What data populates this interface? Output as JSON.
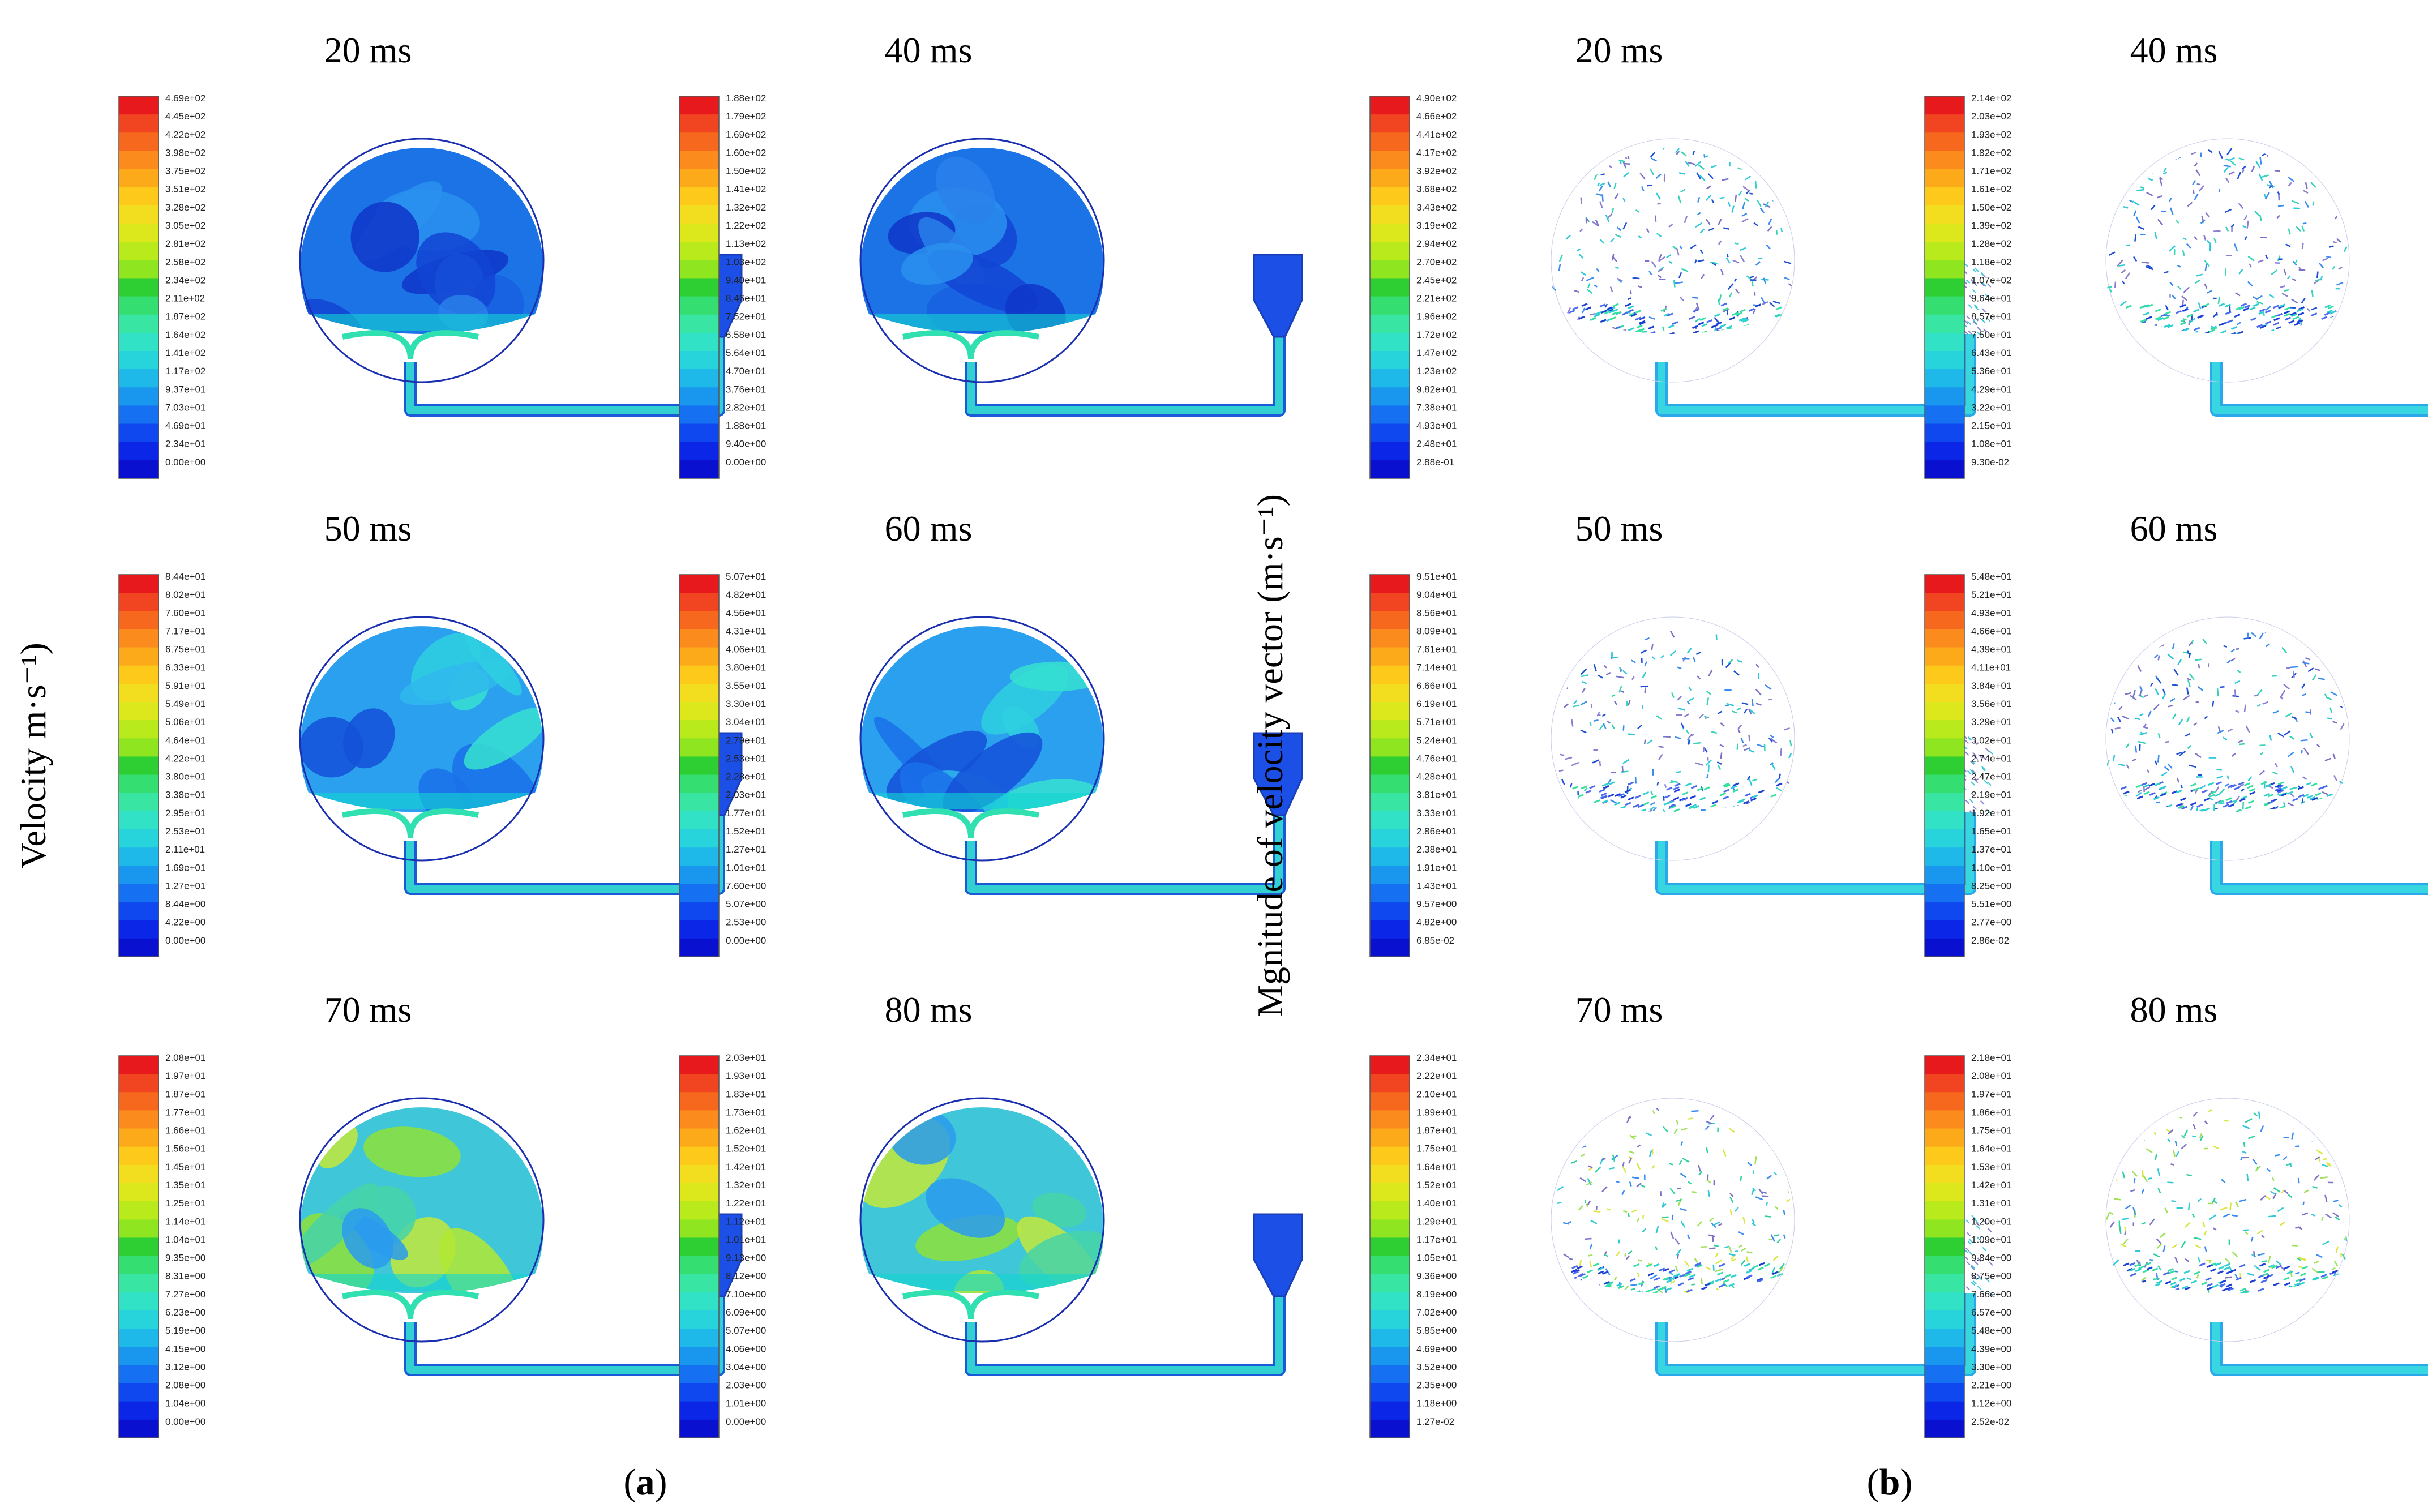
{
  "panel_a": {
    "axis_label": "Velocity m·s⁻¹)",
    "caption_letter": "a",
    "frames": [
      {
        "time": "20 ms",
        "field": "contour",
        "ticks": [
          "4.69e+02",
          "4.45e+02",
          "4.22e+02",
          "3.98e+02",
          "3.75e+02",
          "3.51e+02",
          "3.28e+02",
          "3.05e+02",
          "2.81e+02",
          "2.58e+02",
          "2.34e+02",
          "2.11e+02",
          "1.87e+02",
          "1.64e+02",
          "1.41e+02",
          "1.17e+02",
          "9.37e+01",
          "7.03e+01",
          "4.69e+01",
          "2.34e+01",
          "0.00e+00"
        ]
      },
      {
        "time": "40 ms",
        "field": "contour",
        "ticks": [
          "1.88e+02",
          "1.79e+02",
          "1.69e+02",
          "1.60e+02",
          "1.50e+02",
          "1.41e+02",
          "1.32e+02",
          "1.22e+02",
          "1.13e+02",
          "1.03e+02",
          "9.40e+01",
          "8.46e+01",
          "7.52e+01",
          "6.58e+01",
          "5.64e+01",
          "4.70e+01",
          "3.76e+01",
          "2.82e+01",
          "1.88e+01",
          "9.40e+00",
          "0.00e+00"
        ]
      },
      {
        "time": "50 ms",
        "field": "contour",
        "ticks": [
          "8.44e+01",
          "8.02e+01",
          "7.60e+01",
          "7.17e+01",
          "6.75e+01",
          "6.33e+01",
          "5.91e+01",
          "5.49e+01",
          "5.06e+01",
          "4.64e+01",
          "4.22e+01",
          "3.80e+01",
          "3.38e+01",
          "2.95e+01",
          "2.53e+01",
          "2.11e+01",
          "1.69e+01",
          "1.27e+01",
          "8.44e+00",
          "4.22e+00",
          "0.00e+00"
        ]
      },
      {
        "time": "60 ms",
        "field": "contour",
        "ticks": [
          "5.07e+01",
          "4.82e+01",
          "4.56e+01",
          "4.31e+01",
          "4.06e+01",
          "3.80e+01",
          "3.55e+01",
          "3.30e+01",
          "3.04e+01",
          "2.79e+01",
          "2.53e+01",
          "2.28e+01",
          "2.03e+01",
          "1.77e+01",
          "1.52e+01",
          "1.27e+01",
          "1.01e+01",
          "7.60e+00",
          "5.07e+00",
          "2.53e+00",
          "0.00e+00"
        ]
      },
      {
        "time": "70 ms",
        "field": "contour",
        "ticks": [
          "2.08e+01",
          "1.97e+01",
          "1.87e+01",
          "1.77e+01",
          "1.66e+01",
          "1.56e+01",
          "1.45e+01",
          "1.35e+01",
          "1.25e+01",
          "1.14e+01",
          "1.04e+01",
          "9.35e+00",
          "8.31e+00",
          "7.27e+00",
          "6.23e+00",
          "5.19e+00",
          "4.15e+00",
          "3.12e+00",
          "2.08e+00",
          "1.04e+00",
          "0.00e+00"
        ]
      },
      {
        "time": "80 ms",
        "field": "contour",
        "ticks": [
          "2.03e+01",
          "1.93e+01",
          "1.83e+01",
          "1.73e+01",
          "1.62e+01",
          "1.52e+01",
          "1.42e+01",
          "1.32e+01",
          "1.22e+01",
          "1.12e+01",
          "1.01e+01",
          "9.13e+00",
          "8.12e+00",
          "7.10e+00",
          "6.09e+00",
          "5.07e+00",
          "4.06e+00",
          "3.04e+00",
          "2.03e+00",
          "1.01e+00",
          "0.00e+00"
        ]
      }
    ]
  },
  "panel_b": {
    "axis_label": "Mgnitude of velocity vector (m·s⁻¹)",
    "caption_letter": "b",
    "frames": [
      {
        "time": "20 ms",
        "field": "vector",
        "ticks": [
          "4.90e+02",
          "4.66e+02",
          "4.41e+02",
          "4.17e+02",
          "3.92e+02",
          "3.68e+02",
          "3.43e+02",
          "3.19e+02",
          "2.94e+02",
          "2.70e+02",
          "2.45e+02",
          "2.21e+02",
          "1.96e+02",
          "1.72e+02",
          "1.47e+02",
          "1.23e+02",
          "9.82e+01",
          "7.38e+01",
          "4.93e+01",
          "2.48e+01",
          "2.88e-01"
        ]
      },
      {
        "time": "40 ms",
        "field": "vector",
        "ticks": [
          "2.14e+02",
          "2.03e+02",
          "1.93e+02",
          "1.82e+02",
          "1.71e+02",
          "1.61e+02",
          "1.50e+02",
          "1.39e+02",
          "1.28e+02",
          "1.18e+02",
          "1.07e+02",
          "9.64e+01",
          "8.57e+01",
          "7.50e+01",
          "6.43e+01",
          "5.36e+01",
          "4.29e+01",
          "3.22e+01",
          "2.15e+01",
          "1.08e+01",
          "9.30e-02"
        ]
      },
      {
        "time": "50 ms",
        "field": "vector",
        "ticks": [
          "9.51e+01",
          "9.04e+01",
          "8.56e+01",
          "8.09e+01",
          "7.61e+01",
          "7.14e+01",
          "6.66e+01",
          "6.19e+01",
          "5.71e+01",
          "5.24e+01",
          "4.76e+01",
          "4.28e+01",
          "3.81e+01",
          "3.33e+01",
          "2.86e+01",
          "2.38e+01",
          "1.91e+01",
          "1.43e+01",
          "9.57e+00",
          "4.82e+00",
          "6.85e-02"
        ]
      },
      {
        "time": "60 ms",
        "field": "vector",
        "ticks": [
          "5.48e+01",
          "5.21e+01",
          "4.93e+01",
          "4.66e+01",
          "4.39e+01",
          "4.11e+01",
          "3.84e+01",
          "3.56e+01",
          "3.29e+01",
          "3.02e+01",
          "2.74e+01",
          "2.47e+01",
          "2.19e+01",
          "1.92e+01",
          "1.65e+01",
          "1.37e+01",
          "1.10e+01",
          "8.25e+00",
          "5.51e+00",
          "2.77e+00",
          "2.86e-02"
        ]
      },
      {
        "time": "70 ms",
        "field": "vector",
        "ticks": [
          "2.34e+01",
          "2.22e+01",
          "2.10e+01",
          "1.99e+01",
          "1.87e+01",
          "1.75e+01",
          "1.64e+01",
          "1.52e+01",
          "1.40e+01",
          "1.29e+01",
          "1.17e+01",
          "1.05e+01",
          "9.36e+00",
          "8.19e+00",
          "7.02e+00",
          "5.85e+00",
          "4.69e+00",
          "3.52e+00",
          "2.35e+00",
          "1.18e+00",
          "1.27e-02"
        ]
      },
      {
        "time": "80 ms",
        "field": "vector",
        "ticks": [
          "2.18e+01",
          "2.08e+01",
          "1.97e+01",
          "1.86e+01",
          "1.75e+01",
          "1.64e+01",
          "1.53e+01",
          "1.42e+01",
          "1.31e+01",
          "1.20e+01",
          "1.09e+01",
          "9.84e+00",
          "8.75e+00",
          "7.66e+00",
          "6.57e+00",
          "5.48e+00",
          "4.39e+00",
          "3.30e+00",
          "2.21e+00",
          "1.12e+00",
          "2.52e-02"
        ]
      }
    ]
  },
  "colors": {
    "colormap": [
      "#e8191d",
      "#f04520",
      "#f7681f",
      "#fb8b1c",
      "#fdaa1a",
      "#fdc91a",
      "#f3dd1f",
      "#dde81c",
      "#b9ea1c",
      "#8fe520",
      "#2ecf33",
      "#34de70",
      "#38e5a2",
      "#32e2c6",
      "#27d4dc",
      "#1eb9e8",
      "#1997ef",
      "#1570f2",
      "#1048ef",
      "#0b26e6",
      "#0a10cf"
    ],
    "contour_base": "#1c73e6",
    "contour_dark": "#1346d8",
    "contour_light": "#2a98ee",
    "duct_flow": "#32d0d0"
  }
}
